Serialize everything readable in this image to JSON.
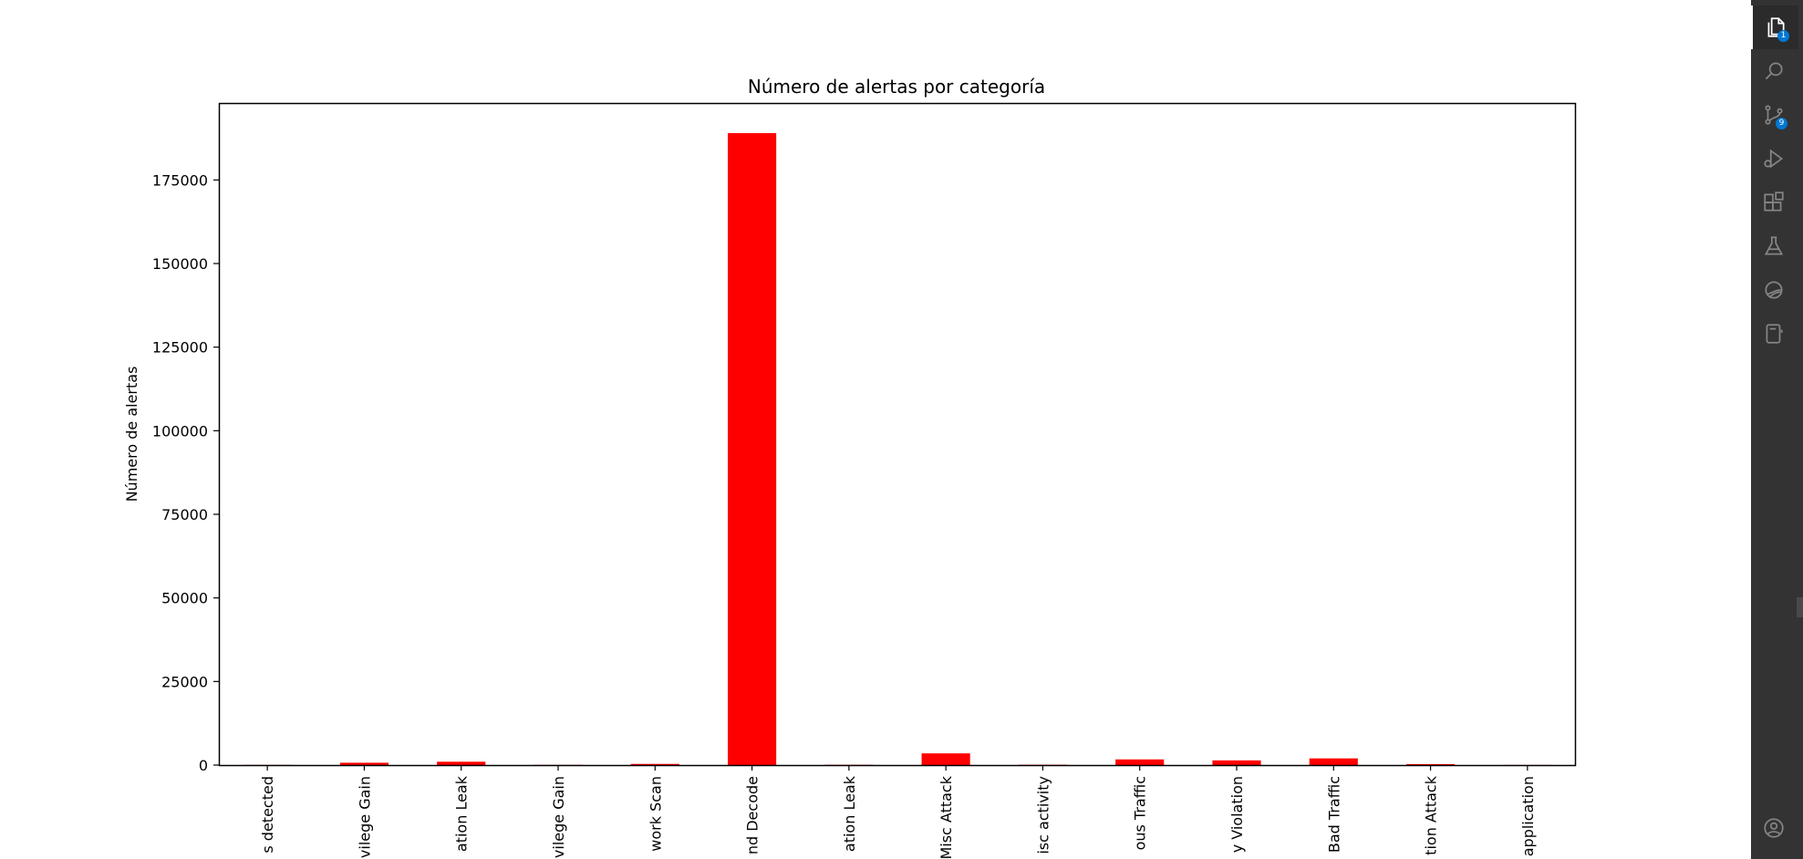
{
  "chart_data": {
    "type": "bar",
    "title": "Número de alertas por categoría",
    "xlabel": "",
    "ylabel": "Número de alertas",
    "ylim": [
      0,
      198000
    ],
    "yticks": [
      0,
      25000,
      50000,
      75000,
      100000,
      125000,
      150000,
      175000
    ],
    "bar_color": "#ff0000",
    "categories": [
      "s detected",
      "vilege Gain",
      "ation Leak",
      "vilege Gain",
      "work Scan",
      "nd Decode",
      "ation Leak",
      "Misc Attack",
      "isc activity",
      "ous Traffic",
      "y Violation",
      "Bad Traffic",
      "tion Attack",
      "application"
    ],
    "values": [
      50,
      700,
      1000,
      60,
      350,
      189000,
      80,
      3500,
      100,
      1700,
      1400,
      2000,
      300,
      30
    ]
  },
  "activity_bar": {
    "background": "#333333",
    "items": [
      {
        "name": "explorer-icon",
        "badge": "1"
      },
      {
        "name": "search-icon"
      },
      {
        "name": "source-control-icon",
        "badge": "9"
      },
      {
        "name": "run-debug-icon"
      },
      {
        "name": "extensions-icon"
      },
      {
        "name": "testing-icon"
      },
      {
        "name": "remote-explorer-icon"
      },
      {
        "name": "notebook-icon"
      },
      {
        "name": "accounts-icon"
      }
    ]
  }
}
